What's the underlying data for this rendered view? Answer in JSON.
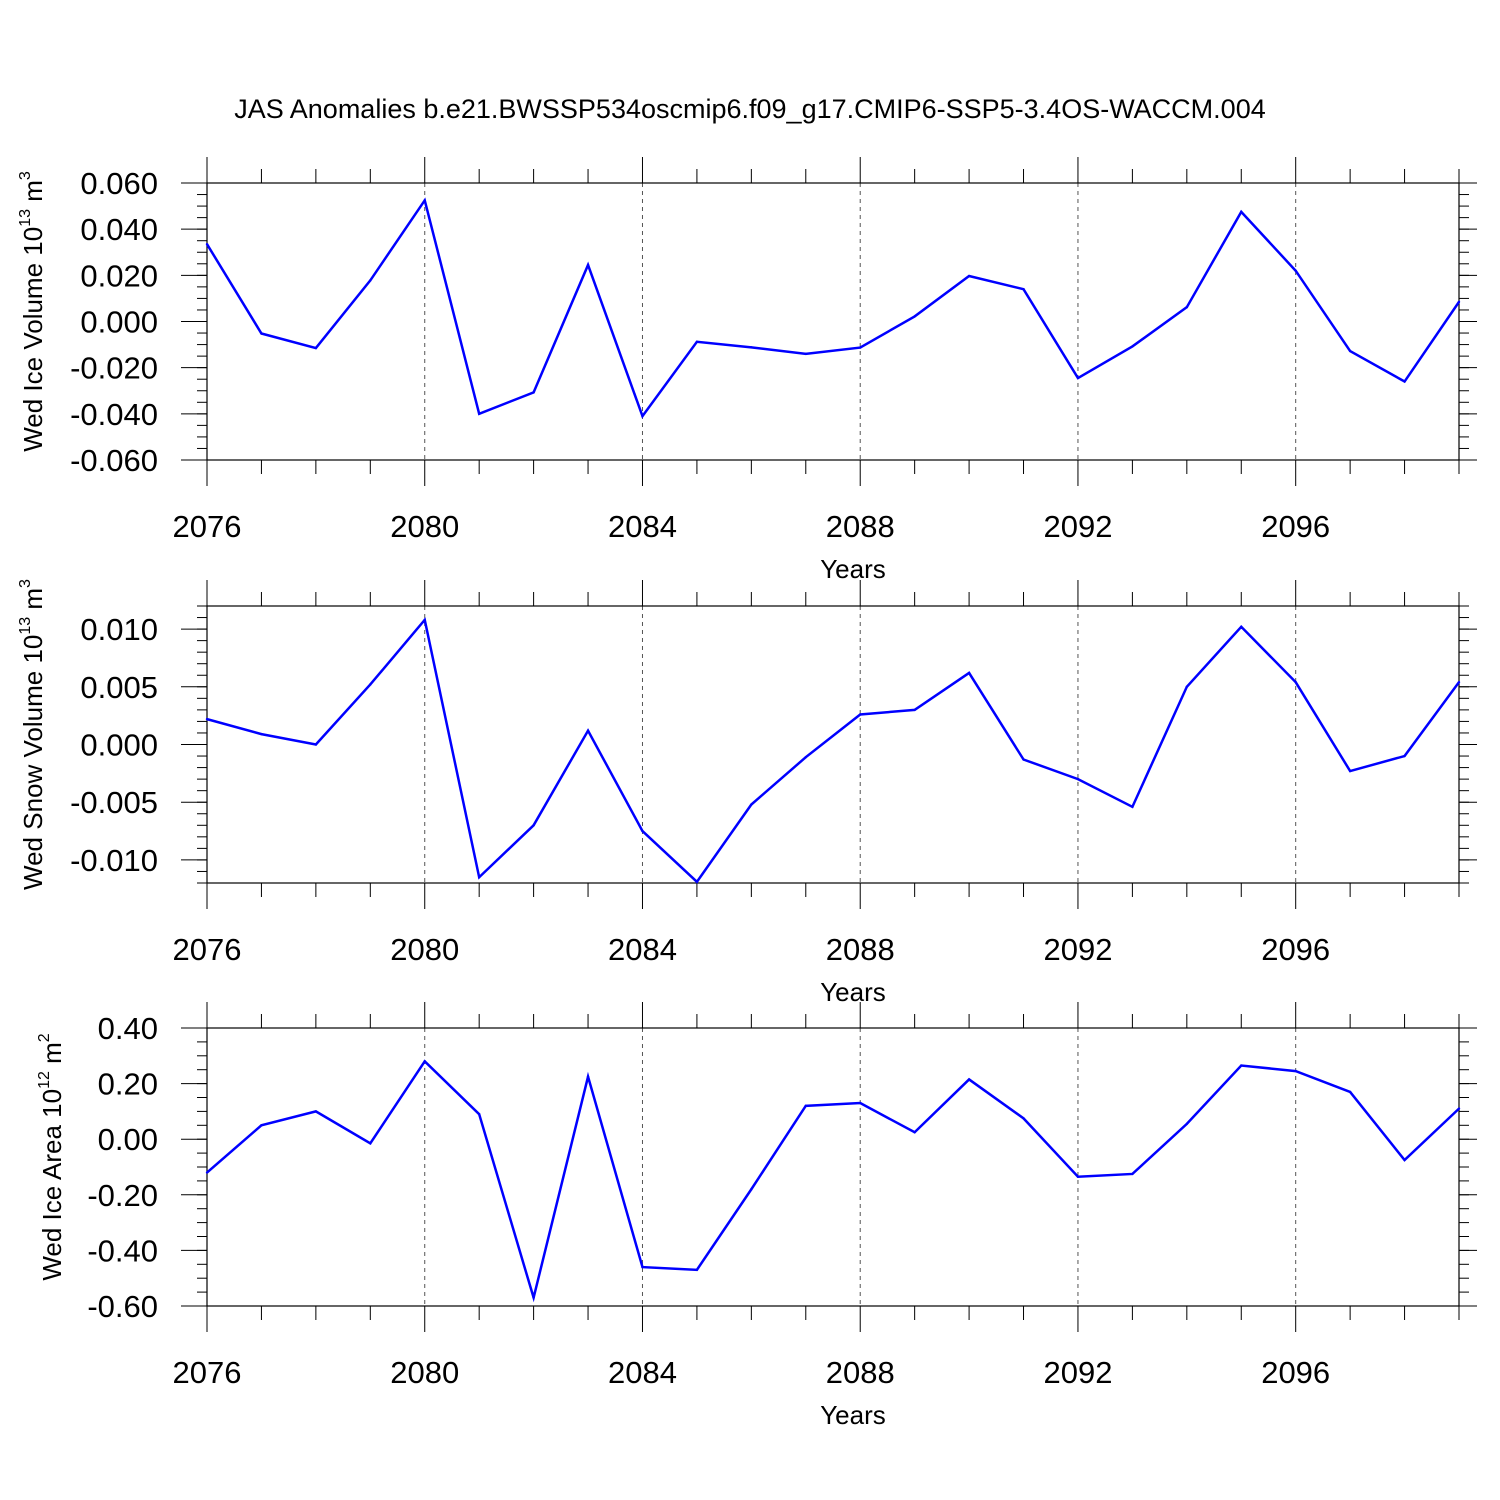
{
  "figure": {
    "title": "JAS Anomalies b.e21.BWSSP534oscmip6.f09_g17.CMIP6-SSP5-3.4OS-WACCM.004"
  },
  "chart_data": [
    {
      "type": "line",
      "title": "",
      "xlabel": "Years",
      "ylabel": "Wed Ice Volume 10",
      "ylabel_exp": "13",
      "ylabel_unit": " m",
      "ylabel_unit_exp": "3",
      "xlim": [
        2076,
        2099
      ],
      "ylim": [
        -0.06,
        0.06
      ],
      "xticks": [
        "2076",
        "2080",
        "2084",
        "2088",
        "2092",
        "2096"
      ],
      "yticks": [
        "0.060",
        "0.040",
        "0.020",
        "0.000",
        "-0.020",
        "-0.040",
        "-0.060"
      ],
      "grid": "vertical dashed at major x ticks",
      "line_color": "#0000ff",
      "x": [
        2076,
        2077,
        2078,
        2079,
        2080,
        2081,
        2082,
        2083,
        2084,
        2085,
        2086,
        2087,
        2088,
        2089,
        2090,
        2091,
        2092,
        2093,
        2094,
        2095,
        2096,
        2097,
        2098,
        2099
      ],
      "values": [
        0.0335,
        -0.0052,
        -0.0115,
        0.0178,
        0.0525,
        -0.04,
        -0.0307,
        0.0245,
        -0.041,
        -0.0088,
        -0.0112,
        -0.014,
        -0.0113,
        0.0022,
        0.0197,
        0.014,
        -0.0245,
        -0.0108,
        0.0062,
        0.0475,
        0.022,
        -0.0128,
        -0.026,
        0.0085
      ]
    },
    {
      "type": "line",
      "title": "",
      "xlabel": "Years",
      "ylabel": "Wed Snow Volume 10",
      "ylabel_exp": "13",
      "ylabel_unit": " m",
      "ylabel_unit_exp": "3",
      "xlim": [
        2076,
        2099
      ],
      "ylim": [
        -0.012,
        0.012
      ],
      "xticks": [
        "2076",
        "2080",
        "2084",
        "2088",
        "2092",
        "2096"
      ],
      "yticks": [
        "0.010",
        "0.005",
        "0.000",
        "-0.005",
        "-0.010"
      ],
      "grid": "vertical dashed at major x ticks",
      "line_color": "#0000ff",
      "x": [
        2076,
        2077,
        2078,
        2079,
        2080,
        2081,
        2082,
        2083,
        2084,
        2085,
        2086,
        2087,
        2088,
        2089,
        2090,
        2091,
        2092,
        2093,
        2094,
        2095,
        2096,
        2097,
        2098,
        2099
      ],
      "values": [
        0.0022,
        0.0009,
        0.0,
        0.0052,
        0.0108,
        -0.0115,
        -0.007,
        0.0012,
        -0.0075,
        -0.0119,
        -0.0052,
        -0.0011,
        0.0026,
        0.003,
        0.0062,
        -0.0013,
        -0.003,
        -0.0054,
        0.005,
        0.0102,
        0.0054,
        -0.0023,
        -0.001,
        0.0054
      ]
    },
    {
      "type": "line",
      "title": "",
      "xlabel": "Years",
      "ylabel": "Wed Ice Area 10",
      "ylabel_exp": "12",
      "ylabel_unit": " m",
      "ylabel_unit_exp": "2",
      "xlim": [
        2076,
        2099
      ],
      "ylim": [
        -0.6,
        0.4
      ],
      "xticks": [
        "2076",
        "2080",
        "2084",
        "2088",
        "2092",
        "2096"
      ],
      "yticks": [
        "0.40",
        "0.20",
        "0.00",
        "-0.20",
        "-0.40",
        "-0.60"
      ],
      "grid": "vertical dashed at major x ticks",
      "line_color": "#0000ff",
      "x": [
        2076,
        2077,
        2078,
        2079,
        2080,
        2081,
        2082,
        2083,
        2084,
        2085,
        2086,
        2087,
        2088,
        2089,
        2090,
        2091,
        2092,
        2093,
        2094,
        2095,
        2096,
        2097,
        2098,
        2099
      ],
      "values": [
        -0.12,
        0.05,
        0.1,
        -0.015,
        0.28,
        0.09,
        -0.57,
        0.225,
        -0.46,
        -0.47,
        -0.18,
        0.12,
        0.13,
        0.025,
        0.215,
        0.075,
        -0.135,
        -0.125,
        0.055,
        0.265,
        0.245,
        0.17,
        -0.075,
        0.11
      ]
    }
  ]
}
